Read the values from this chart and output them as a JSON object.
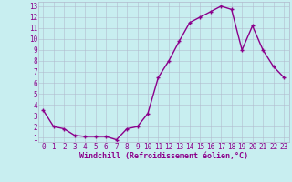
{
  "x": [
    0,
    1,
    2,
    3,
    4,
    5,
    6,
    7,
    8,
    9,
    10,
    11,
    12,
    13,
    14,
    15,
    16,
    17,
    18,
    19,
    20,
    21,
    22,
    23
  ],
  "y": [
    3.5,
    2.0,
    1.8,
    1.2,
    1.1,
    1.1,
    1.1,
    0.8,
    1.8,
    2.0,
    3.2,
    6.5,
    8.0,
    9.8,
    11.5,
    12.0,
    12.5,
    13.0,
    12.7,
    9.0,
    11.2,
    9.0,
    7.5,
    6.5
  ],
  "line_color": "#8b008b",
  "marker": "+",
  "bg_color": "#c8eef0",
  "grid_color": "#b0b8cc",
  "xlabel": "Windchill (Refroidissement éolien,°C)",
  "ylabel": "",
  "yticks": [
    1,
    2,
    3,
    4,
    5,
    6,
    7,
    8,
    9,
    10,
    11,
    12,
    13
  ],
  "xticks": [
    0,
    1,
    2,
    3,
    4,
    5,
    6,
    7,
    8,
    9,
    10,
    11,
    12,
    13,
    14,
    15,
    16,
    17,
    18,
    19,
    20,
    21,
    22,
    23
  ],
  "font_color": "#8b008b",
  "linewidth": 1.0,
  "markersize": 3.5,
  "markeredgewidth": 1.0,
  "tick_fontsize": 5.5,
  "xlabel_fontsize": 6.0
}
